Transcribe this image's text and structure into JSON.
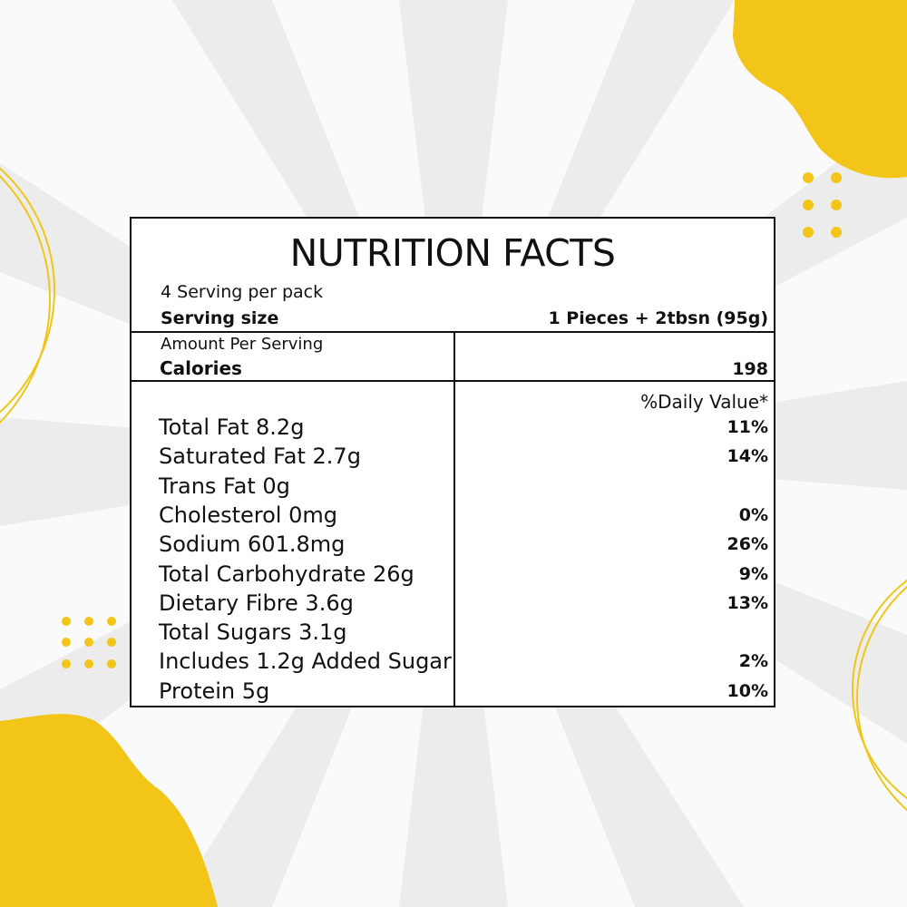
{
  "colors": {
    "accent": "#f2c518",
    "ink": "#111111",
    "background": "#fafafa"
  },
  "label": {
    "title": "NUTRITION FACTS",
    "servings_per_pack": "4 Serving per pack",
    "serving_size_label": "Serving size",
    "serving_size_value": "1 Pieces + 2tbsn (95g)",
    "amount_per_serving": "Amount Per Serving",
    "calories_label": "Calories",
    "calories_value": "198",
    "daily_value_header": "%Daily Value*",
    "nutrients": [
      {
        "name": "Total Fat 8.2g",
        "dv": "11%"
      },
      {
        "name": "Saturated Fat 2.7g",
        "dv": "14%"
      },
      {
        "name": "Trans Fat 0g",
        "dv": ""
      },
      {
        "name": "Cholesterol 0mg",
        "dv": "0%"
      },
      {
        "name": "Sodium 601.8mg",
        "dv": "26%"
      },
      {
        "name": "Total Carbohydrate 26g",
        "dv": "9%"
      },
      {
        "name": "Dietary Fibre 3.6g",
        "dv": "13%"
      },
      {
        "name": "Total Sugars 3.1g",
        "dv": ""
      },
      {
        "name": "Includes 1.2g Added Sugar",
        "dv": "2%"
      },
      {
        "name": "Protein 5g",
        "dv": "10%"
      }
    ]
  }
}
